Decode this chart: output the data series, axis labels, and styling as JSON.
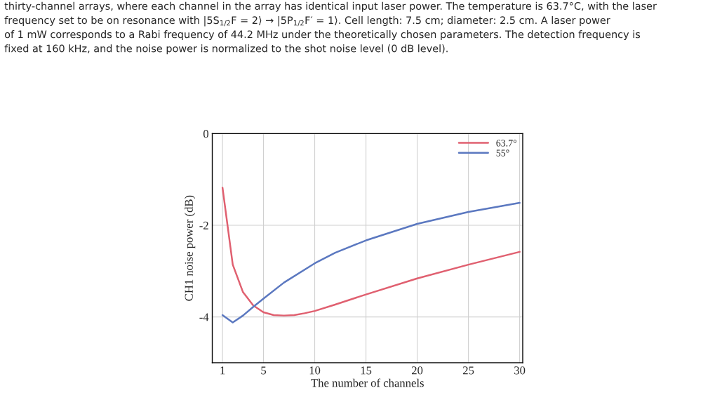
{
  "chart_data": {
    "type": "line",
    "xlabel": "The number of channels",
    "ylabel": "CH1 noise power (dB)",
    "annotations": [
      "thirty-channel arrays, where each channel in the array has identical input laser power. The temperature is 63.7°C, with the laser",
      "frequency set to be on resonance with |5S$_{1/2}$F = 2⟩ → |5P$_{1/2}$F′ = 1⟩. Cell length: 7.5 cm; diameter: 2.5 cm. A laser power",
      "of 1 mW corresponds to a Rabi frequency of 44.2 MHz under the theoretically chosen parameters. The detection frequency is",
      "fixed at 160 kHz, and the noise power is normalized to the shot noise level (0 dB level)."
    ],
    "series": [
      {
        "name": "63.7°",
        "color": "#e06070",
        "x": [
          1,
          2,
          3,
          4,
          5,
          6,
          7,
          8,
          9,
          10,
          12,
          15,
          20,
          25,
          30
        ],
        "values": [
          -1.18,
          -2.86,
          -3.46,
          -3.75,
          -3.9,
          -3.96,
          -3.97,
          -3.96,
          -3.92,
          -3.87,
          -3.73,
          -3.51,
          -3.16,
          -2.86,
          -2.58
        ]
      },
      {
        "name": "55°",
        "color": "#5b78c0",
        "x": [
          1,
          2,
          3,
          4,
          5,
          7,
          10,
          12,
          15,
          20,
          25,
          30
        ],
        "values": [
          -3.96,
          -4.12,
          -3.97,
          -3.78,
          -3.6,
          -3.25,
          -2.83,
          -2.6,
          -2.33,
          -1.97,
          -1.71,
          -1.51
        ]
      }
    ],
    "xlim": [
      0,
      30.3
    ],
    "xticks": [
      1,
      5,
      10,
      15,
      20,
      25,
      30
    ],
    "ylim": [
      -5,
      0
    ],
    "yticks": [
      -4,
      -2,
      0
    ],
    "grid": true,
    "legend": "top right",
    "line_style": "solid",
    "marker": "none"
  }
}
